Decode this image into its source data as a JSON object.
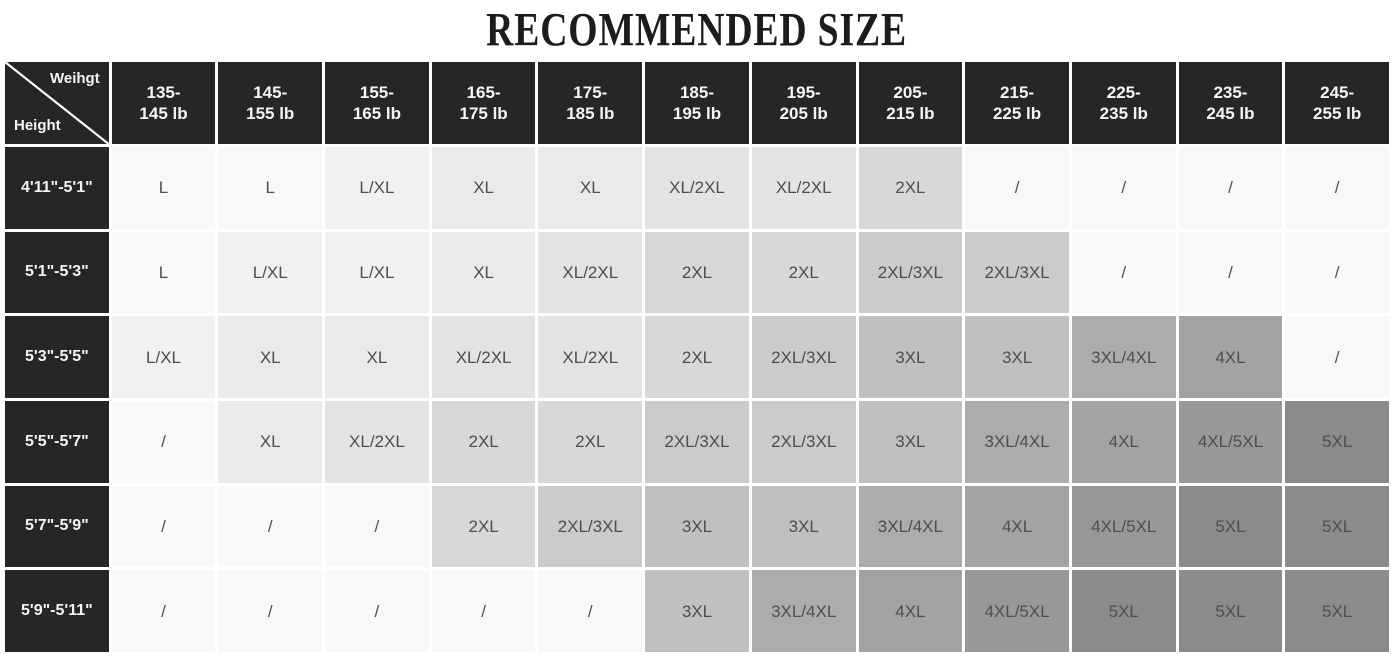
{
  "title": "RECOMMENDED SIZE",
  "chart_data": {
    "type": "table",
    "title": "RECOMMENDED SIZE",
    "corner": {
      "weight_label": "Weihgt",
      "height_label": "Height"
    },
    "columns": [
      {
        "top": "135-",
        "bottom": "145 lb"
      },
      {
        "top": "145-",
        "bottom": "155 lb"
      },
      {
        "top": "155-",
        "bottom": "165 lb"
      },
      {
        "top": "165-",
        "bottom": "175 lb"
      },
      {
        "top": "175-",
        "bottom": "185 lb"
      },
      {
        "top": "185-",
        "bottom": "195 lb"
      },
      {
        "top": "195-",
        "bottom": "205 lb"
      },
      {
        "top": "205-",
        "bottom": "215 lb"
      },
      {
        "top": "215-",
        "bottom": "225 lb"
      },
      {
        "top": "225-",
        "bottom": "235 lb"
      },
      {
        "top": "235-",
        "bottom": "245 lb"
      },
      {
        "top": "245-",
        "bottom": "255 lb"
      }
    ],
    "rows": [
      {
        "height": "4'11\"-5'1\"",
        "sizes": [
          "L",
          "L",
          "L/XL",
          "XL",
          "XL",
          "XL/2XL",
          "XL/2XL",
          "2XL",
          "/",
          "/",
          "/",
          "/"
        ]
      },
      {
        "height": "5'1\"-5'3\"",
        "sizes": [
          "L",
          "L/XL",
          "L/XL",
          "XL",
          "XL/2XL",
          "2XL",
          "2XL",
          "2XL/3XL",
          "2XL/3XL",
          "/",
          "/",
          "/"
        ]
      },
      {
        "height": "5'3\"-5'5\"",
        "sizes": [
          "L/XL",
          "XL",
          "XL",
          "XL/2XL",
          "XL/2XL",
          "2XL",
          "2XL/3XL",
          "3XL",
          "3XL",
          "3XL/4XL",
          "4XL",
          "/"
        ]
      },
      {
        "height": "5'5\"-5'7\"",
        "sizes": [
          "/",
          "XL",
          "XL/2XL",
          "2XL",
          "2XL",
          "2XL/3XL",
          "2XL/3XL",
          "3XL",
          "3XL/4XL",
          "4XL",
          "4XL/5XL",
          "5XL"
        ]
      },
      {
        "height": "5'7\"-5'9\"",
        "sizes": [
          "/",
          "/",
          "/",
          "2XL",
          "2XL/3XL",
          "3XL",
          "3XL",
          "3XL/4XL",
          "4XL",
          "4XL/5XL",
          "5XL",
          "5XL"
        ]
      },
      {
        "height": "5'9\"-5'11\"",
        "sizes": [
          "/",
          "/",
          "/",
          "/",
          "/",
          "3XL",
          "3XL/4XL",
          "4XL",
          "4XL/5XL",
          "5XL",
          "5XL",
          "5XL"
        ]
      }
    ],
    "colors": {
      "header_bg": "#262626",
      "header_text": "#f5f5f5",
      "cell_text": "#4e4e4e",
      "grid_gap": "#ffffff",
      "size_shades": {
        "/": "#f8f8f8",
        "L": "#f8f8f8",
        "L/XL": "#f1f1f1",
        "XL": "#eaeaea",
        "XL/2XL": "#e3e3e3",
        "2XL": "#d8d8d8",
        "2XL/3XL": "#cbcbcb",
        "3XL": "#c0c0c0",
        "3XL/4XL": "#acacac",
        "4XL": "#a3a3a3",
        "4XL/5XL": "#989898",
        "5XL": "#8b8b8b"
      }
    },
    "layout": {
      "grid": "13-column size matrix",
      "legend_position": "none"
    }
  }
}
